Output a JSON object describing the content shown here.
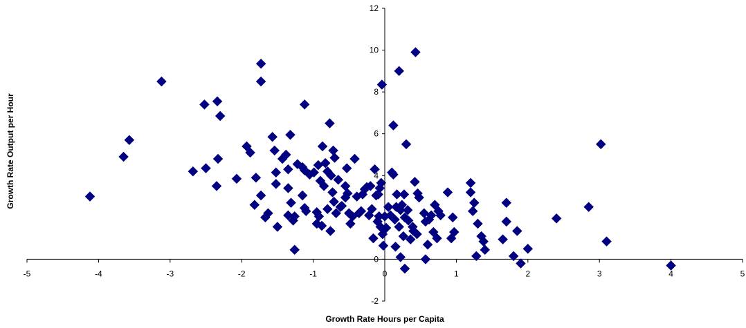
{
  "chart_data": {
    "type": "scatter",
    "title": "",
    "xlabel": "Growth Rate Hours per Capita",
    "ylabel": "Growth Rate Output per Hour",
    "xlim": [
      -5,
      5
    ],
    "ylim": [
      -2,
      12
    ],
    "x_ticks": [
      "-5",
      "-4",
      "-3",
      "-2",
      "-1",
      "0",
      "1",
      "2",
      "3",
      "4",
      "5"
    ],
    "y_ticks": [
      "-2",
      "0",
      "2",
      "4",
      "6",
      "8",
      "10",
      "12"
    ],
    "grid": false,
    "legend": "none",
    "marker": "diamond",
    "series": [
      {
        "color": "#000080",
        "points": [
          [
            -4.12,
            3.0
          ],
          [
            -3.65,
            4.9
          ],
          [
            -3.57,
            5.7
          ],
          [
            -3.12,
            8.5
          ],
          [
            -2.68,
            4.2
          ],
          [
            -2.5,
            4.35
          ],
          [
            -2.52,
            7.4
          ],
          [
            -2.34,
            7.55
          ],
          [
            -2.3,
            6.85
          ],
          [
            -2.33,
            4.8
          ],
          [
            -2.35,
            3.5
          ],
          [
            -2.07,
            3.85
          ],
          [
            -1.93,
            5.4
          ],
          [
            -1.88,
            5.1
          ],
          [
            -1.73,
            8.5
          ],
          [
            -1.73,
            9.35
          ],
          [
            -1.82,
            2.6
          ],
          [
            -1.8,
            3.9
          ],
          [
            -1.73,
            3.05
          ],
          [
            -1.67,
            2.0
          ],
          [
            -1.63,
            2.2
          ],
          [
            -1.57,
            5.85
          ],
          [
            -1.54,
            5.2
          ],
          [
            -1.52,
            4.15
          ],
          [
            -1.52,
            3.6
          ],
          [
            -1.5,
            1.55
          ],
          [
            -1.43,
            4.8
          ],
          [
            -1.38,
            5.0
          ],
          [
            -1.35,
            3.4
          ],
          [
            -1.35,
            4.3
          ],
          [
            -1.32,
            5.95
          ],
          [
            -1.35,
            2.1
          ],
          [
            -1.31,
            2.7
          ],
          [
            -1.28,
            1.85
          ],
          [
            -1.26,
            2.05
          ],
          [
            -1.26,
            0.45
          ],
          [
            -1.22,
            4.55
          ],
          [
            -1.15,
            4.4
          ],
          [
            -1.15,
            3.05
          ],
          [
            -1.12,
            7.4
          ],
          [
            -1.12,
            2.45
          ],
          [
            -1.12,
            4.25
          ],
          [
            -1.1,
            2.3
          ],
          [
            -1.05,
            4.05
          ],
          [
            -0.99,
            4.15
          ],
          [
            -0.95,
            2.25
          ],
          [
            -0.95,
            1.7
          ],
          [
            -0.93,
            4.5
          ],
          [
            -0.92,
            2.05
          ],
          [
            -0.9,
            3.75
          ],
          [
            -0.88,
            1.6
          ],
          [
            -0.87,
            5.4
          ],
          [
            -0.85,
            3.5
          ],
          [
            -0.83,
            4.6
          ],
          [
            -0.8,
            4.2
          ],
          [
            -0.8,
            2.4
          ],
          [
            -0.77,
            6.5
          ],
          [
            -0.76,
            1.35
          ],
          [
            -0.75,
            4.0
          ],
          [
            -0.73,
            3.2
          ],
          [
            -0.72,
            5.2
          ],
          [
            -0.71,
            2.75
          ],
          [
            -0.7,
            4.85
          ],
          [
            -0.68,
            2.2
          ],
          [
            -0.65,
            3.8
          ],
          [
            -0.62,
            2.5
          ],
          [
            -0.6,
            2.55
          ],
          [
            -0.55,
            3.5
          ],
          [
            -0.55,
            2.95
          ],
          [
            -0.53,
            4.35
          ],
          [
            -0.52,
            3.15
          ],
          [
            -0.5,
            2.2
          ],
          [
            -0.48,
            1.7
          ],
          [
            -0.45,
            2.05
          ],
          [
            -0.42,
            4.8
          ],
          [
            -0.39,
            3.0
          ],
          [
            -0.36,
            2.2
          ],
          [
            -0.33,
            2.3
          ],
          [
            -0.31,
            3.1
          ],
          [
            -0.28,
            3.35
          ],
          [
            -0.25,
            3.45
          ],
          [
            -0.22,
            2.1
          ],
          [
            -0.2,
            3.5
          ],
          [
            -0.18,
            2.4
          ],
          [
            -0.16,
            1.0
          ],
          [
            -0.14,
            4.3
          ],
          [
            -0.12,
            3.05
          ],
          [
            -0.1,
            1.8
          ],
          [
            -0.09,
            3.1
          ],
          [
            -0.08,
            2.05
          ],
          [
            -0.07,
            3.4
          ],
          [
            -0.06,
            1.55
          ],
          [
            -0.05,
            3.65
          ],
          [
            -0.04,
            8.35
          ],
          [
            -0.03,
            1.2
          ],
          [
            -0.02,
            0.65
          ],
          [
            0.0,
            2.05
          ],
          [
            0.02,
            1.5
          ],
          [
            0.05,
            2.5
          ],
          [
            0.08,
            2.1
          ],
          [
            0.1,
            4.15
          ],
          [
            0.12,
            6.4
          ],
          [
            0.12,
            4.05
          ],
          [
            0.14,
            1.9
          ],
          [
            0.15,
            0.6
          ],
          [
            0.16,
            2.5
          ],
          [
            0.17,
            3.1
          ],
          [
            0.2,
            9.0
          ],
          [
            0.2,
            1.55
          ],
          [
            0.22,
            2.35
          ],
          [
            0.22,
            0.1
          ],
          [
            0.24,
            2.6
          ],
          [
            0.26,
            1.1
          ],
          [
            0.27,
            3.1
          ],
          [
            0.28,
            2.0
          ],
          [
            0.28,
            -0.45
          ],
          [
            0.3,
            5.5
          ],
          [
            0.32,
            2.35
          ],
          [
            0.33,
            1.85
          ],
          [
            0.36,
            0.95
          ],
          [
            0.39,
            1.55
          ],
          [
            0.4,
            1.35
          ],
          [
            0.42,
            3.7
          ],
          [
            0.43,
            9.9
          ],
          [
            0.45,
            1.2
          ],
          [
            0.46,
            3.15
          ],
          [
            0.48,
            2.95
          ],
          [
            0.55,
            2.2
          ],
          [
            0.57,
            1.8
          ],
          [
            0.57,
            0.0
          ],
          [
            0.6,
            0.7
          ],
          [
            0.62,
            1.9
          ],
          [
            0.65,
            2.1
          ],
          [
            0.68,
            1.3
          ],
          [
            0.7,
            2.6
          ],
          [
            0.73,
            1.0
          ],
          [
            0.75,
            2.3
          ],
          [
            0.78,
            2.1
          ],
          [
            0.88,
            3.2
          ],
          [
            0.93,
            1.0
          ],
          [
            0.97,
            1.3
          ],
          [
            0.95,
            2.0
          ],
          [
            1.2,
            3.65
          ],
          [
            1.2,
            3.2
          ],
          [
            1.23,
            2.3
          ],
          [
            1.25,
            2.7
          ],
          [
            1.28,
            0.15
          ],
          [
            1.3,
            1.7
          ],
          [
            1.35,
            1.1
          ],
          [
            1.38,
            0.85
          ],
          [
            1.4,
            0.45
          ],
          [
            1.65,
            0.95
          ],
          [
            1.7,
            2.7
          ],
          [
            1.7,
            1.8
          ],
          [
            1.8,
            0.15
          ],
          [
            1.85,
            1.35
          ],
          [
            1.9,
            -0.2
          ],
          [
            2.0,
            0.5
          ],
          [
            2.4,
            1.95
          ],
          [
            2.85,
            2.5
          ],
          [
            3.02,
            5.5
          ],
          [
            3.1,
            0.85
          ],
          [
            4.0,
            -0.3
          ]
        ]
      }
    ]
  }
}
